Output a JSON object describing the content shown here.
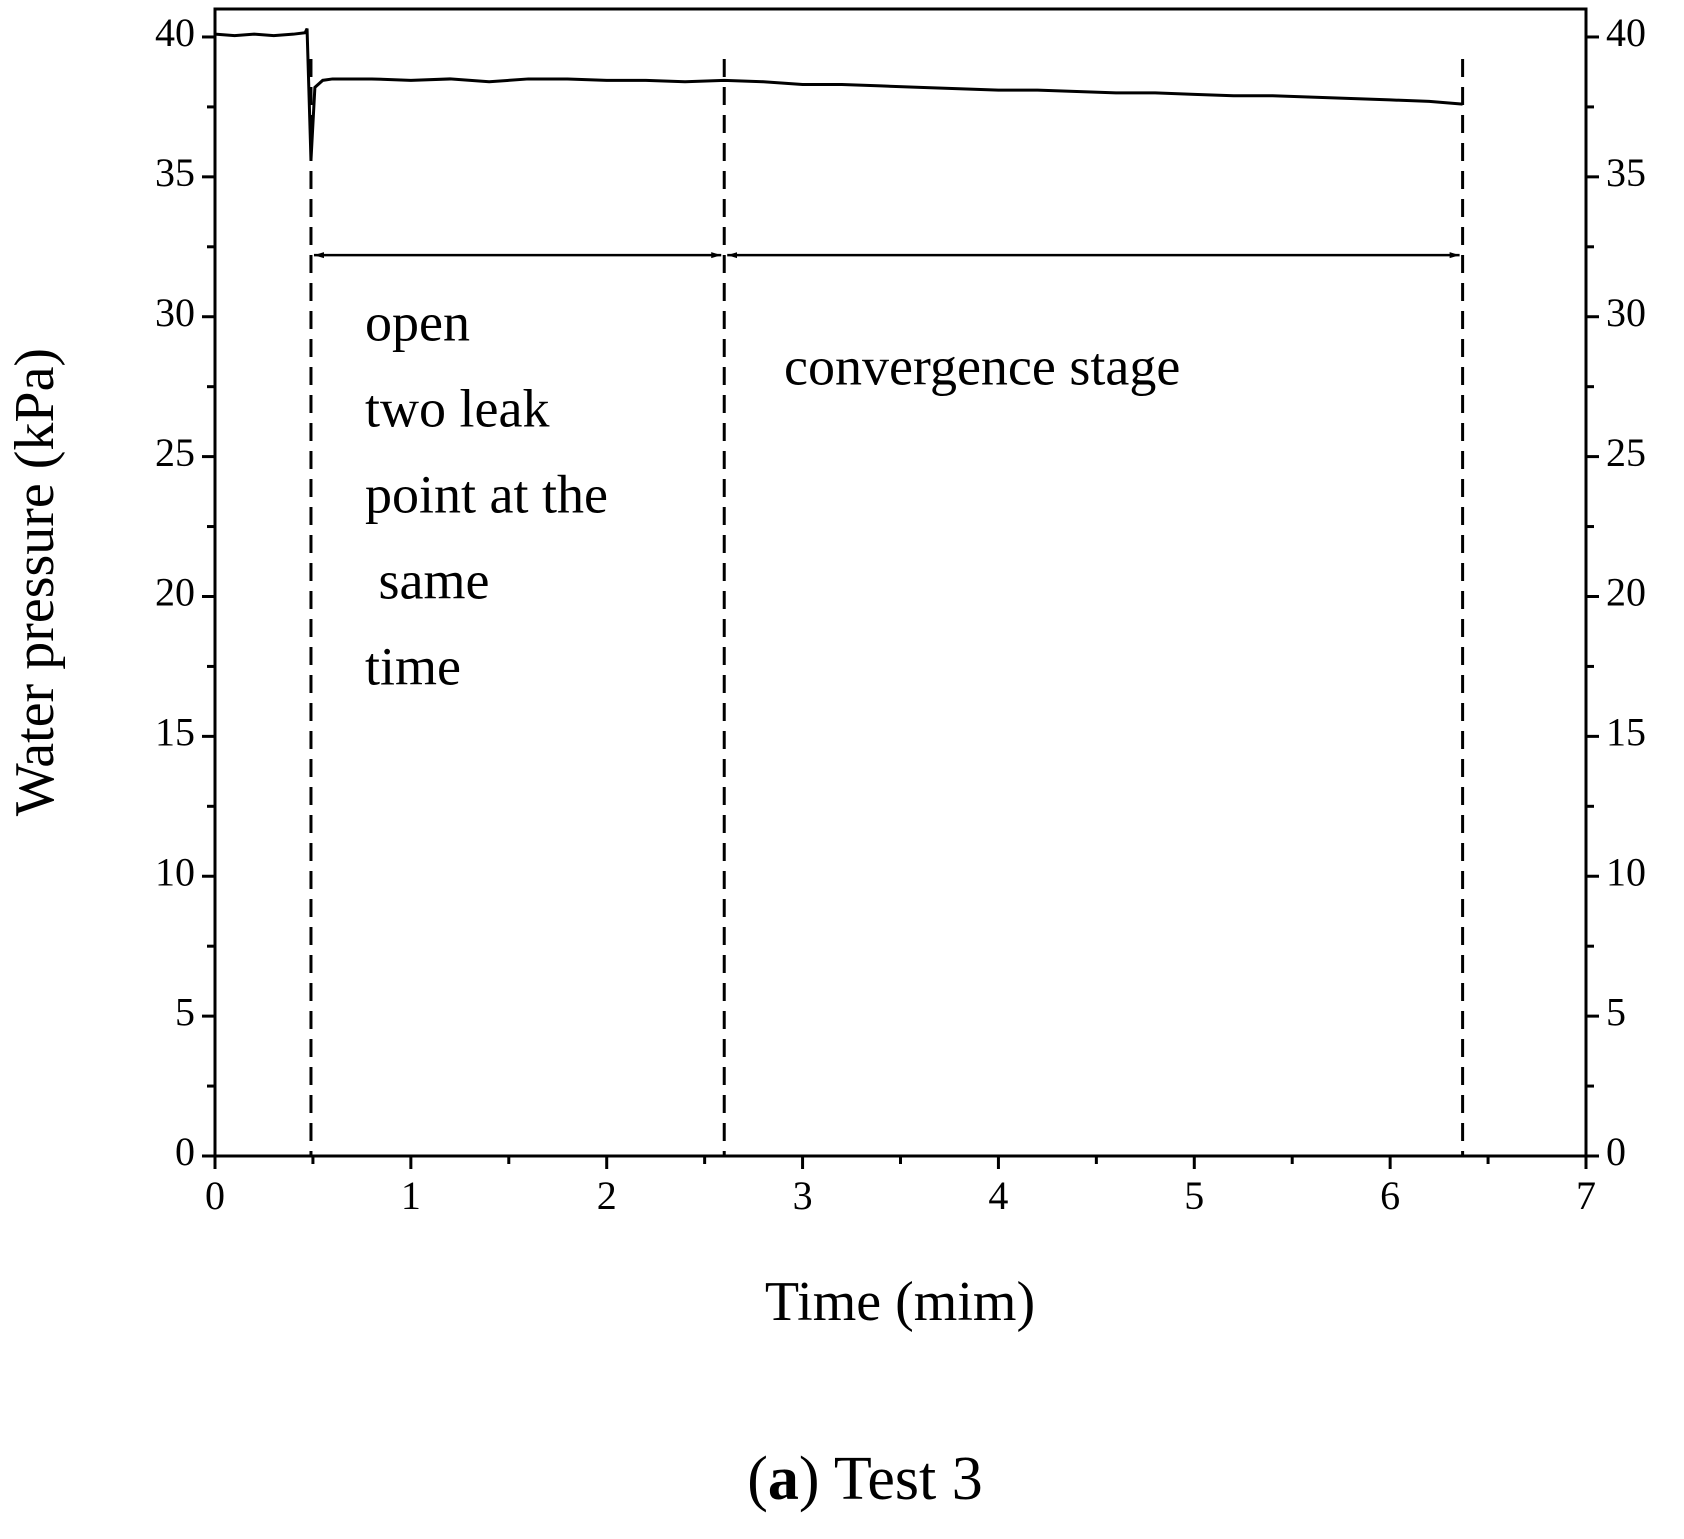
{
  "chart_data": {
    "type": "line",
    "xlabel": "Time (mim)",
    "ylabel": "Water pressure (kPa)",
    "caption_parts": [
      "(",
      "a",
      ") Test 3"
    ],
    "annotations": [
      "open",
      "two leak",
      "point at the",
      " same",
      "time",
      "convergence stage"
    ],
    "x": [
      0,
      0.1,
      0.2,
      0.3,
      0.4,
      0.46,
      0.47,
      0.49,
      0.51,
      0.55,
      0.6,
      0.8,
      1.0,
      1.2,
      1.4,
      1.6,
      1.8,
      2.0,
      2.2,
      2.4,
      2.6,
      2.8,
      3.0,
      3.2,
      3.4,
      3.6,
      3.8,
      4.0,
      4.2,
      4.4,
      4.6,
      4.8,
      5.0,
      5.2,
      5.4,
      5.6,
      5.8,
      6.0,
      6.2,
      6.37
    ],
    "series": [
      {
        "name": "Water pressure",
        "color": "#000000",
        "values": [
          40.1,
          40.05,
          40.1,
          40.05,
          40.1,
          40.15,
          40.3,
          35.6,
          38.2,
          38.45,
          38.5,
          38.5,
          38.45,
          38.5,
          38.4,
          38.5,
          38.5,
          38.45,
          38.45,
          38.4,
          38.45,
          38.4,
          38.3,
          38.3,
          38.25,
          38.2,
          38.15,
          38.1,
          38.1,
          38.05,
          38.0,
          38.0,
          37.95,
          37.9,
          37.9,
          37.85,
          37.8,
          37.75,
          37.7,
          37.6
        ]
      }
    ],
    "vlines": [
      0.49,
      2.6,
      6.37
    ],
    "arrow_y": 32.2,
    "xlim": [
      0,
      7
    ],
    "ylim": [
      0,
      41
    ],
    "xticks": [
      0,
      1,
      2,
      3,
      4,
      5,
      6,
      7
    ],
    "yticks": [
      0,
      5,
      10,
      15,
      20,
      25,
      30,
      35,
      40
    ],
    "xminorticks": [
      0.5,
      1.5,
      2.5,
      3.5,
      4.5,
      5.5,
      6.5
    ],
    "yminorticks": [
      2.5,
      7.5,
      12.5,
      17.5,
      22.5,
      27.5,
      32.5,
      37.5
    ]
  }
}
